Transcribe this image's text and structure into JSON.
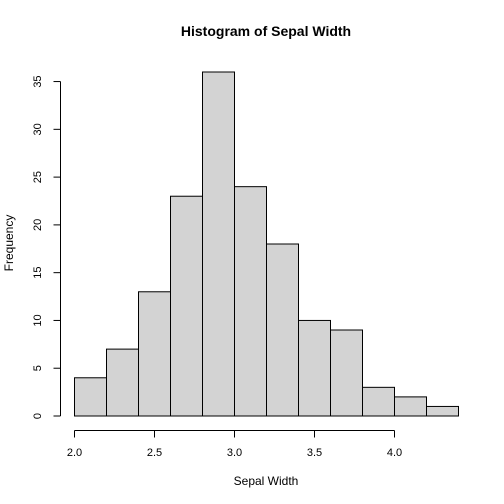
{
  "chart_data": {
    "type": "bar",
    "title": "Histogram of Sepal Width",
    "xlabel": "Sepal Width",
    "ylabel": "Frequency",
    "bin_edges": [
      2.0,
      2.2,
      2.4,
      2.6,
      2.8,
      3.0,
      3.2,
      3.4,
      3.6,
      3.8,
      4.0,
      4.2,
      4.4
    ],
    "values": [
      4,
      7,
      13,
      23,
      36,
      24,
      18,
      10,
      9,
      3,
      2,
      1
    ],
    "x_ticks": [
      2.0,
      2.5,
      3.0,
      3.5,
      4.0
    ],
    "x_tick_labels": [
      "2.0",
      "2.5",
      "3.0",
      "3.5",
      "4.0"
    ],
    "y_ticks": [
      0,
      5,
      10,
      15,
      20,
      25,
      30,
      35
    ],
    "y_tick_labels": [
      "0",
      "5",
      "10",
      "15",
      "20",
      "25",
      "30",
      "35"
    ],
    "xlim": [
      2.0,
      4.4
    ],
    "ylim": [
      0,
      36
    ],
    "grid": false,
    "bar_fill": "#d3d3d3",
    "bar_stroke": "#000000"
  }
}
